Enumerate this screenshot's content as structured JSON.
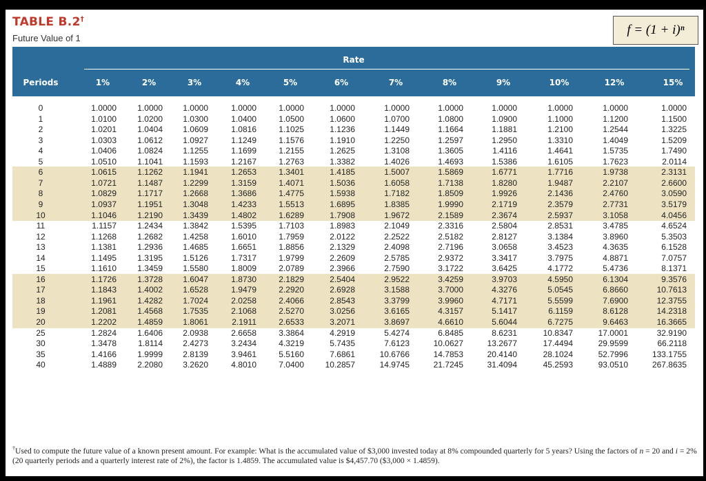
{
  "header": {
    "title": "TABLE B.2",
    "title_mark": "†",
    "subtitle": "Future Value of 1",
    "formula": "f = (1 + i)ⁿ"
  },
  "table": {
    "rate_label": "Rate",
    "periods_label": "Periods",
    "rates": [
      "1%",
      "2%",
      "3%",
      "4%",
      "5%",
      "6%",
      "7%",
      "8%",
      "9%",
      "10%",
      "12%",
      "15%"
    ],
    "rows": [
      {
        "period": "0",
        "values": [
          "1.0000",
          "1.0000",
          "1.0000",
          "1.0000",
          "1.0000",
          "1.0000",
          "1.0000",
          "1.0000",
          "1.0000",
          "1.0000",
          "1.0000",
          "1.0000"
        ]
      },
      {
        "period": "1",
        "values": [
          "1.0100",
          "1.0200",
          "1.0300",
          "1.0400",
          "1.0500",
          "1.0600",
          "1.0700",
          "1.0800",
          "1.0900",
          "1.1000",
          "1.1200",
          "1.1500"
        ]
      },
      {
        "period": "2",
        "values": [
          "1.0201",
          "1.0404",
          "1.0609",
          "1.0816",
          "1.1025",
          "1.1236",
          "1.1449",
          "1.1664",
          "1.1881",
          "1.2100",
          "1.2544",
          "1.3225"
        ]
      },
      {
        "period": "3",
        "values": [
          "1.0303",
          "1.0612",
          "1.0927",
          "1.1249",
          "1.1576",
          "1.1910",
          "1.2250",
          "1.2597",
          "1.2950",
          "1.3310",
          "1.4049",
          "1.5209"
        ]
      },
      {
        "period": "4",
        "values": [
          "1.0406",
          "1.0824",
          "1.1255",
          "1.1699",
          "1.2155",
          "1.2625",
          "1.3108",
          "1.3605",
          "1.4116",
          "1.4641",
          "1.5735",
          "1.7490"
        ]
      },
      {
        "period": "5",
        "values": [
          "1.0510",
          "1.1041",
          "1.1593",
          "1.2167",
          "1.2763",
          "1.3382",
          "1.4026",
          "1.4693",
          "1.5386",
          "1.6105",
          "1.7623",
          "2.0114"
        ]
      },
      {
        "period": "6",
        "values": [
          "1.0615",
          "1.1262",
          "1.1941",
          "1.2653",
          "1.3401",
          "1.4185",
          "1.5007",
          "1.5869",
          "1.6771",
          "1.7716",
          "1.9738",
          "2.3131"
        ]
      },
      {
        "period": "7",
        "values": [
          "1.0721",
          "1.1487",
          "1.2299",
          "1.3159",
          "1.4071",
          "1.5036",
          "1.6058",
          "1.7138",
          "1.8280",
          "1.9487",
          "2.2107",
          "2.6600"
        ]
      },
      {
        "period": "8",
        "values": [
          "1.0829",
          "1.1717",
          "1.2668",
          "1.3686",
          "1.4775",
          "1.5938",
          "1.7182",
          "1.8509",
          "1.9926",
          "2.1436",
          "2.4760",
          "3.0590"
        ]
      },
      {
        "period": "9",
        "values": [
          "1.0937",
          "1.1951",
          "1.3048",
          "1.4233",
          "1.5513",
          "1.6895",
          "1.8385",
          "1.9990",
          "2.1719",
          "2.3579",
          "2.7731",
          "3.5179"
        ]
      },
      {
        "period": "10",
        "values": [
          "1.1046",
          "1.2190",
          "1.3439",
          "1.4802",
          "1.6289",
          "1.7908",
          "1.9672",
          "2.1589",
          "2.3674",
          "2.5937",
          "3.1058",
          "4.0456"
        ]
      },
      {
        "period": "11",
        "values": [
          "1.1157",
          "1.2434",
          "1.3842",
          "1.5395",
          "1.7103",
          "1.8983",
          "2.1049",
          "2.3316",
          "2.5804",
          "2.8531",
          "3.4785",
          "4.6524"
        ]
      },
      {
        "period": "12",
        "values": [
          "1.1268",
          "1.2682",
          "1.4258",
          "1.6010",
          "1.7959",
          "2.0122",
          "2.2522",
          "2.5182",
          "2.8127",
          "3.1384",
          "3.8960",
          "5.3503"
        ]
      },
      {
        "period": "13",
        "values": [
          "1.1381",
          "1.2936",
          "1.4685",
          "1.6651",
          "1.8856",
          "2.1329",
          "2.4098",
          "2.7196",
          "3.0658",
          "3.4523",
          "4.3635",
          "6.1528"
        ]
      },
      {
        "period": "14",
        "values": [
          "1.1495",
          "1.3195",
          "1.5126",
          "1.7317",
          "1.9799",
          "2.2609",
          "2.5785",
          "2.9372",
          "3.3417",
          "3.7975",
          "4.8871",
          "7.0757"
        ]
      },
      {
        "period": "15",
        "values": [
          "1.1610",
          "1.3459",
          "1.5580",
          "1.8009",
          "2.0789",
          "2.3966",
          "2.7590",
          "3.1722",
          "3.6425",
          "4.1772",
          "5.4736",
          "8.1371"
        ]
      },
      {
        "period": "16",
        "values": [
          "1.1726",
          "1.3728",
          "1.6047",
          "1.8730",
          "2.1829",
          "2.5404",
          "2.9522",
          "3.4259",
          "3.9703",
          "4.5950",
          "6.1304",
          "9.3576"
        ]
      },
      {
        "period": "17",
        "values": [
          "1.1843",
          "1.4002",
          "1.6528",
          "1.9479",
          "2.2920",
          "2.6928",
          "3.1588",
          "3.7000",
          "4.3276",
          "5.0545",
          "6.8660",
          "10.7613"
        ]
      },
      {
        "period": "18",
        "values": [
          "1.1961",
          "1.4282",
          "1.7024",
          "2.0258",
          "2.4066",
          "2.8543",
          "3.3799",
          "3.9960",
          "4.7171",
          "5.5599",
          "7.6900",
          "12.3755"
        ]
      },
      {
        "period": "19",
        "values": [
          "1.2081",
          "1.4568",
          "1.7535",
          "2.1068",
          "2.5270",
          "3.0256",
          "3.6165",
          "4.3157",
          "5.1417",
          "6.1159",
          "8.6128",
          "14.2318"
        ]
      },
      {
        "period": "20",
        "values": [
          "1.2202",
          "1.4859",
          "1.8061",
          "2.1911",
          "2.6533",
          "3.2071",
          "3.8697",
          "4.6610",
          "5.6044",
          "6.7275",
          "9.6463",
          "16.3665"
        ]
      },
      {
        "period": "25",
        "values": [
          "1.2824",
          "1.6406",
          "2.0938",
          "2.6658",
          "3.3864",
          "4.2919",
          "5.4274",
          "6.8485",
          "8.6231",
          "10.8347",
          "17.0001",
          "32.9190"
        ]
      },
      {
        "period": "30",
        "values": [
          "1.3478",
          "1.8114",
          "2.4273",
          "3.2434",
          "4.3219",
          "5.7435",
          "7.6123",
          "10.0627",
          "13.2677",
          "17.4494",
          "29.9599",
          "66.2118"
        ]
      },
      {
        "period": "35",
        "values": [
          "1.4166",
          "1.9999",
          "2.8139",
          "3.9461",
          "5.5160",
          "7.6861",
          "10.6766",
          "14.7853",
          "20.4140",
          "28.1024",
          "52.7996",
          "133.1755"
        ]
      },
      {
        "period": "40",
        "values": [
          "1.4889",
          "2.2080",
          "3.2620",
          "4.8010",
          "7.0400",
          "10.2857",
          "14.9745",
          "21.7245",
          "31.4094",
          "45.2593",
          "93.0510",
          "267.8635"
        ]
      }
    ]
  },
  "footnote": {
    "mark": "†",
    "text_1": "Used to compute the future value of a known present amount. For example: What is the accumulated value of $3,000 invested today at 8% compounded quarterly for 5 years? Using the factors of ",
    "n_var": "n",
    "text_2": " = 20 and ",
    "i_var": "i",
    "text_3": " = 2% (20 quarterly periods and a quarterly interest rate of 2%), the factor is 1.4859. The accumulated value is $4,457.70 ($3,000 × 1.4859)."
  }
}
